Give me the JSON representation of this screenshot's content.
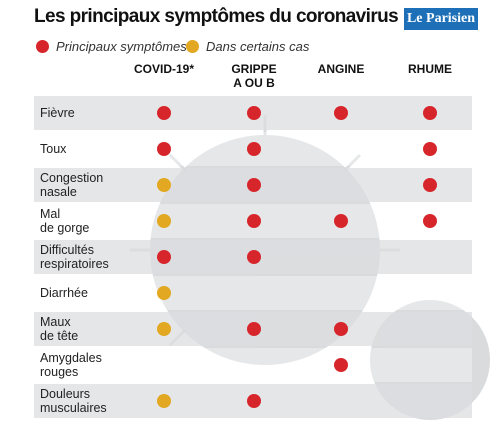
{
  "header": {
    "title": "Les principaux symptômes du coronavirus",
    "logo": "Le Parisien"
  },
  "legend": [
    {
      "label": "Principaux symptômes",
      "color": "#d7262b"
    },
    {
      "label": "Dans certains cas",
      "color": "#e2a822"
    }
  ],
  "table": {
    "columns": [
      "COVID-19*",
      "GRIPPE\nA OU B",
      "ANGINE",
      "RHUME"
    ],
    "rows": [
      {
        "label": "Fièvre",
        "cells": [
          "#d7262b",
          "#d7262b",
          "#d7262b",
          "#d7262b"
        ]
      },
      {
        "label": "Toux",
        "cells": [
          "#d7262b",
          "#d7262b",
          null,
          "#d7262b"
        ]
      },
      {
        "label": "Congestion\nnasale",
        "cells": [
          "#e2a822",
          "#d7262b",
          null,
          "#d7262b"
        ]
      },
      {
        "label": "Mal\nde gorge",
        "cells": [
          "#e2a822",
          "#d7262b",
          "#d7262b",
          "#d7262b"
        ]
      },
      {
        "label": "Difficultés\nrespiratoires",
        "cells": [
          "#d7262b",
          "#d7262b",
          null,
          null
        ]
      },
      {
        "label": "Diarrhée",
        "cells": [
          "#e2a822",
          null,
          null,
          null
        ]
      },
      {
        "label": "Maux\nde tête",
        "cells": [
          "#e2a822",
          "#d7262b",
          "#d7262b",
          null
        ]
      },
      {
        "label": "Amygdales\nrouges",
        "cells": [
          null,
          null,
          "#d7262b",
          null
        ]
      },
      {
        "label": "Douleurs\nmusculaires",
        "cells": [
          "#e2a822",
          "#d7262b",
          null,
          null
        ]
      }
    ]
  }
}
